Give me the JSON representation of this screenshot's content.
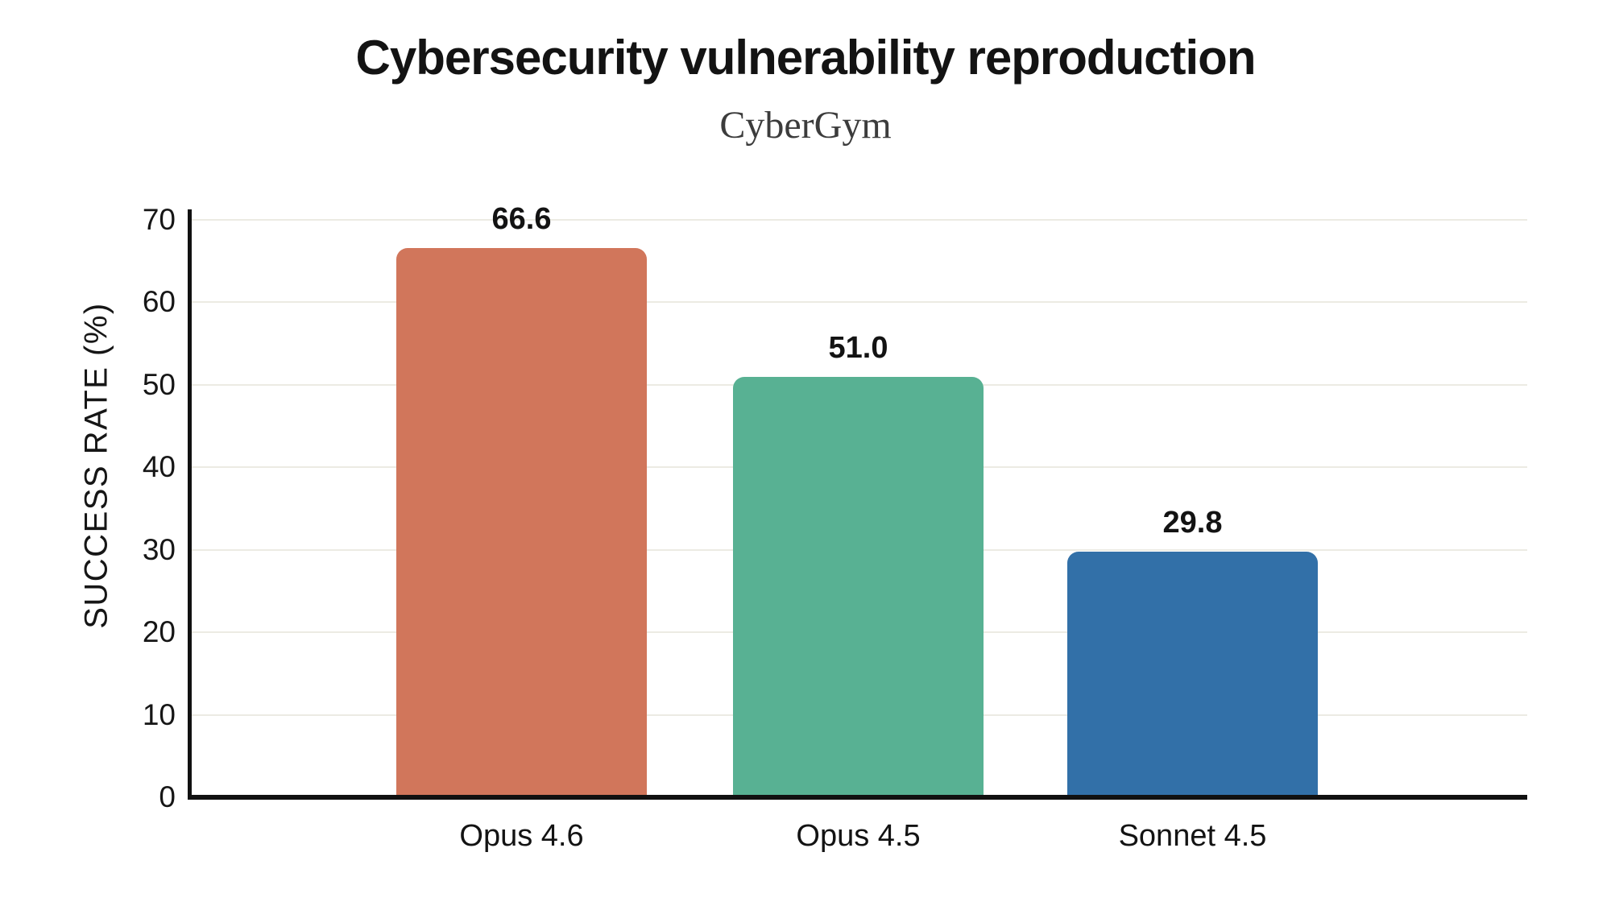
{
  "chart_data": {
    "type": "bar",
    "title": "Cybersecurity vulnerability reproduction",
    "subtitle": "CyberGym",
    "xlabel": "",
    "ylabel": "SUCCESS RATE (%)",
    "categories": [
      "Opus 4.6",
      "Opus 4.5",
      "Sonnet 4.5"
    ],
    "values": [
      66.6,
      51.0,
      29.8
    ],
    "value_labels": [
      "66.6",
      "51.0",
      "29.8"
    ],
    "bar_colors": [
      "#d1765b",
      "#58b193",
      "#3270a8"
    ],
    "ylim": [
      0,
      70
    ],
    "yticks": [
      0,
      10,
      20,
      30,
      40,
      50,
      60,
      70
    ],
    "grid": "horizontal-light",
    "legend": "none",
    "background_color": "#ffffff",
    "axis_color": "#111111",
    "gridline_color": "#ecebe3"
  }
}
